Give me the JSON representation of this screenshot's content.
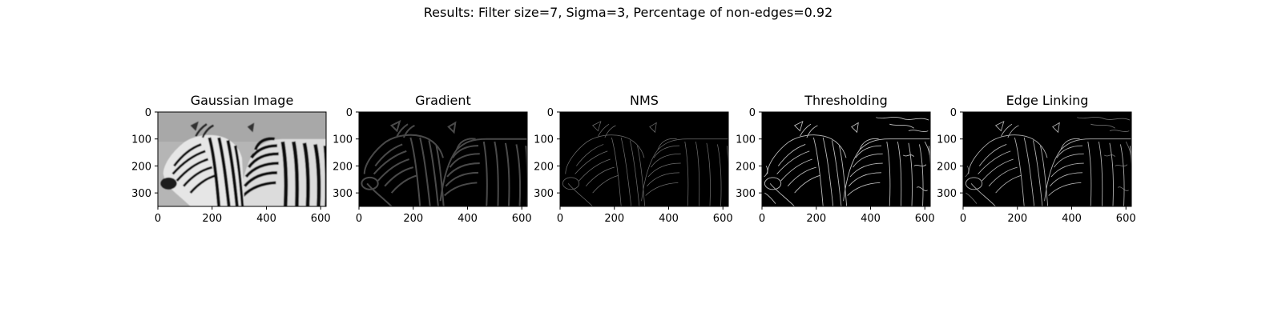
{
  "figure": {
    "suptitle": "Results: Filter size=7, Sigma=3, Percentage of non-edges=0.92"
  },
  "panels": [
    {
      "title": "Gaussian Image",
      "image": "grayscale blurred photo of two zebras",
      "xticks": [
        "0",
        "200",
        "400",
        "600"
      ],
      "yticks": [
        "0",
        "100",
        "200",
        "300"
      ]
    },
    {
      "title": "Gradient",
      "image": "dim gradient magnitude of zebras on black",
      "xticks": [
        "0",
        "200",
        "400",
        "600"
      ],
      "yticks": [
        "0",
        "100",
        "200",
        "300"
      ]
    },
    {
      "title": "NMS",
      "image": "thin faint edges of zebras on black",
      "xticks": [
        "0",
        "200",
        "400",
        "600"
      ],
      "yticks": [
        "0",
        "100",
        "200",
        "300"
      ]
    },
    {
      "title": "Thresholding",
      "image": "bright thin edges of zebras plus background clutter on black",
      "xticks": [
        "0",
        "200",
        "400",
        "600"
      ],
      "yticks": [
        "0",
        "100",
        "200",
        "300"
      ]
    },
    {
      "title": "Edge Linking",
      "image": "linked edges of zebras on black",
      "xticks": [
        "0",
        "200",
        "400",
        "600"
      ],
      "yticks": [
        "0",
        "100",
        "200",
        "300"
      ]
    }
  ]
}
